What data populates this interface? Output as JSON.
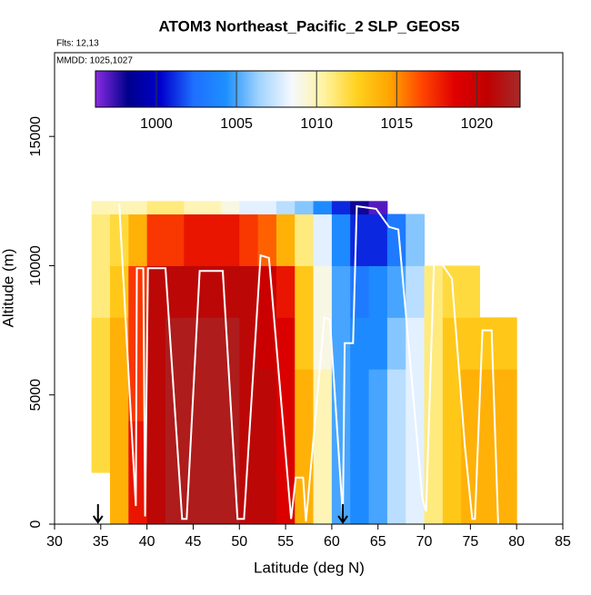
{
  "chart_data": {
    "type": "curtain",
    "title": "ATOM3 Northeast_Pacific_2 SLP_GEOS5",
    "annotations": [
      "Flts: 12,13",
      "MMDD: 1025,1027"
    ],
    "xlabel": "Latitude (deg N)",
    "ylabel": "Altitude (m)",
    "xlim": [
      30,
      85
    ],
    "xticks": [
      30,
      35,
      40,
      45,
      50,
      55,
      60,
      65,
      70,
      75,
      80,
      85
    ],
    "ylim": [
      0,
      18240
    ],
    "yticks": [
      0,
      5000,
      10000,
      15000
    ],
    "lat_edges": [
      34,
      36,
      38,
      40,
      42,
      44,
      46,
      48,
      50,
      52,
      54,
      56,
      58,
      60,
      62,
      64,
      66,
      68,
      70,
      72,
      74,
      76,
      78,
      80
    ],
    "alt_edges": [
      0,
      2000,
      4000,
      6000,
      8000,
      10000,
      12000,
      12500
    ],
    "z": [
      [
        null,
        1012,
        1012,
        1012,
        1011,
        1011,
        1010
      ],
      [
        1014,
        1014,
        1014,
        1014,
        1013,
        1012,
        1010
      ],
      [
        1018,
        1018,
        1017,
        1017,
        1017,
        1014,
        1010
      ],
      [
        1021,
        1021,
        1021,
        1021,
        1021,
        1017,
        1011
      ],
      [
        1022,
        1022,
        1022,
        1022,
        1021,
        1017,
        1011
      ],
      [
        1022,
        1022,
        1022,
        1022,
        1021,
        1018,
        1010
      ],
      [
        1022,
        1022,
        1022,
        1022,
        1021,
        1018,
        1010
      ],
      [
        1022,
        1022,
        1022,
        1022,
        1021,
        1018,
        1009
      ],
      [
        1021,
        1021,
        1021,
        1021,
        1021,
        1017,
        1008
      ],
      [
        1021,
        1021,
        1021,
        1020,
        1020,
        1016,
        1008
      ],
      [
        1019,
        1019,
        1019,
        1019,
        1018,
        1014,
        1007
      ],
      [
        1014,
        1014,
        1014,
        1013,
        1013,
        1011,
        1006
      ],
      [
        1010,
        1010,
        1010,
        1009,
        1009,
        1008,
        1004
      ],
      [
        1005,
        1005,
        1005,
        1005,
        1005,
        1004,
        1001
      ],
      [
        1004,
        1004,
        1004,
        1004,
        1003,
        1001,
        998
      ],
      [
        1005,
        1005,
        1005,
        1004,
        1004,
        1001,
        997
      ],
      [
        1007,
        1007,
        1007,
        1006,
        1005,
        1003,
        null
      ],
      [
        1008,
        1008,
        1008,
        1008,
        1007,
        1006,
        null
      ],
      [
        1011,
        1011,
        1011,
        1011,
        1011,
        null,
        null
      ],
      [
        1013,
        1013,
        1013,
        1013,
        1012,
        null,
        null
      ],
      [
        1014,
        1014,
        1014,
        1013,
        1012,
        null,
        null
      ],
      [
        1014,
        1014,
        1014,
        1013,
        null,
        null,
        null
      ],
      [
        1014,
        1014,
        1014,
        1013,
        null,
        null,
        null
      ]
    ],
    "clim": [
      996.2,
      1022.7
    ],
    "cticks": [
      1000,
      1005,
      1010,
      1015,
      1020
    ],
    "colormap": [
      "#8a2be2",
      "#00008b",
      "#0000cd",
      "#1e6fff",
      "#1e90ff",
      "#9fd3ff",
      "#f5f8ff",
      "#fff3a0",
      "#ffd21f",
      "#ffa500",
      "#ff4500",
      "#e00000",
      "#c00000",
      "#a52a2a"
    ],
    "track": {
      "color": "#ffffff",
      "x": [
        37,
        38.8,
        38.9,
        39.6,
        39.8,
        40.1,
        42,
        43.8,
        44.3,
        45.7,
        48.2,
        49.8,
        50.5,
        52.3,
        53.2,
        55.6,
        56.1,
        56.9,
        57.2,
        59.2,
        59.8,
        61.2,
        61.4,
        62.3,
        62.7,
        64.8,
        66.2,
        67.2,
        69.8,
        70.2,
        71.1,
        73,
        74.4,
        75.2,
        75.5,
        76.3,
        77.3,
        78
      ],
      "y": [
        12400,
        700,
        9900,
        9900,
        300,
        9900,
        9900,
        200,
        200,
        9800,
        9800,
        200,
        200,
        10400,
        10300,
        200,
        1800,
        1800,
        100,
        8000,
        7900,
        300,
        7000,
        7000,
        12300,
        12200,
        11500,
        11400,
        1000,
        500,
        10500,
        9500,
        3000,
        200,
        200,
        7500,
        7500,
        0
      ]
    },
    "arrows_x": [
      34.7,
      61.2
    ]
  }
}
